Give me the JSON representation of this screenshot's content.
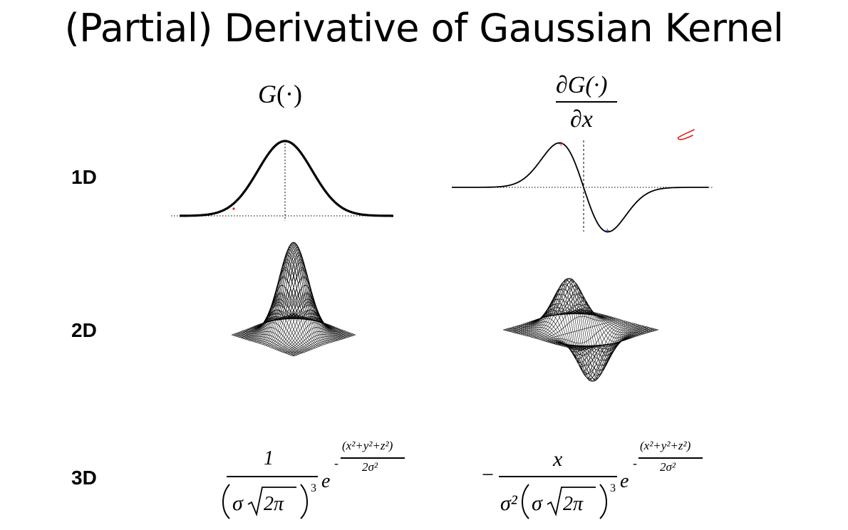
{
  "slide": {
    "title": "(Partial) Derivative of Gaussian Kernel"
  },
  "columns": {
    "gaussian": {
      "label_main": "G",
      "label_arg": "(·)"
    },
    "derivative": {
      "numerator": "∂G(·)",
      "denominator": "∂x"
    }
  },
  "rows": [
    {
      "label": "1D"
    },
    {
      "label": "2D"
    },
    {
      "label": "3D"
    }
  ],
  "formulas": {
    "gaussian_3d": {
      "numerator": "1",
      "sigma": "σ",
      "two_pi": "2π",
      "power": "3",
      "base": "e",
      "exp_numerator": "(x²+y²+z²)",
      "exp_denominator": "2σ²"
    },
    "derivative_3d": {
      "sign": "−",
      "numerator": "x",
      "sigma_sq": "σ²",
      "sigma": "σ",
      "two_pi": "2π",
      "power": "3",
      "base": "e",
      "exp_numerator": "(x²+y²+z²)",
      "exp_denominator": "2σ²"
    }
  },
  "colors": {
    "curve": "#000000",
    "annotation": "#e0201a",
    "marker_min": "#1a3cd8"
  }
}
